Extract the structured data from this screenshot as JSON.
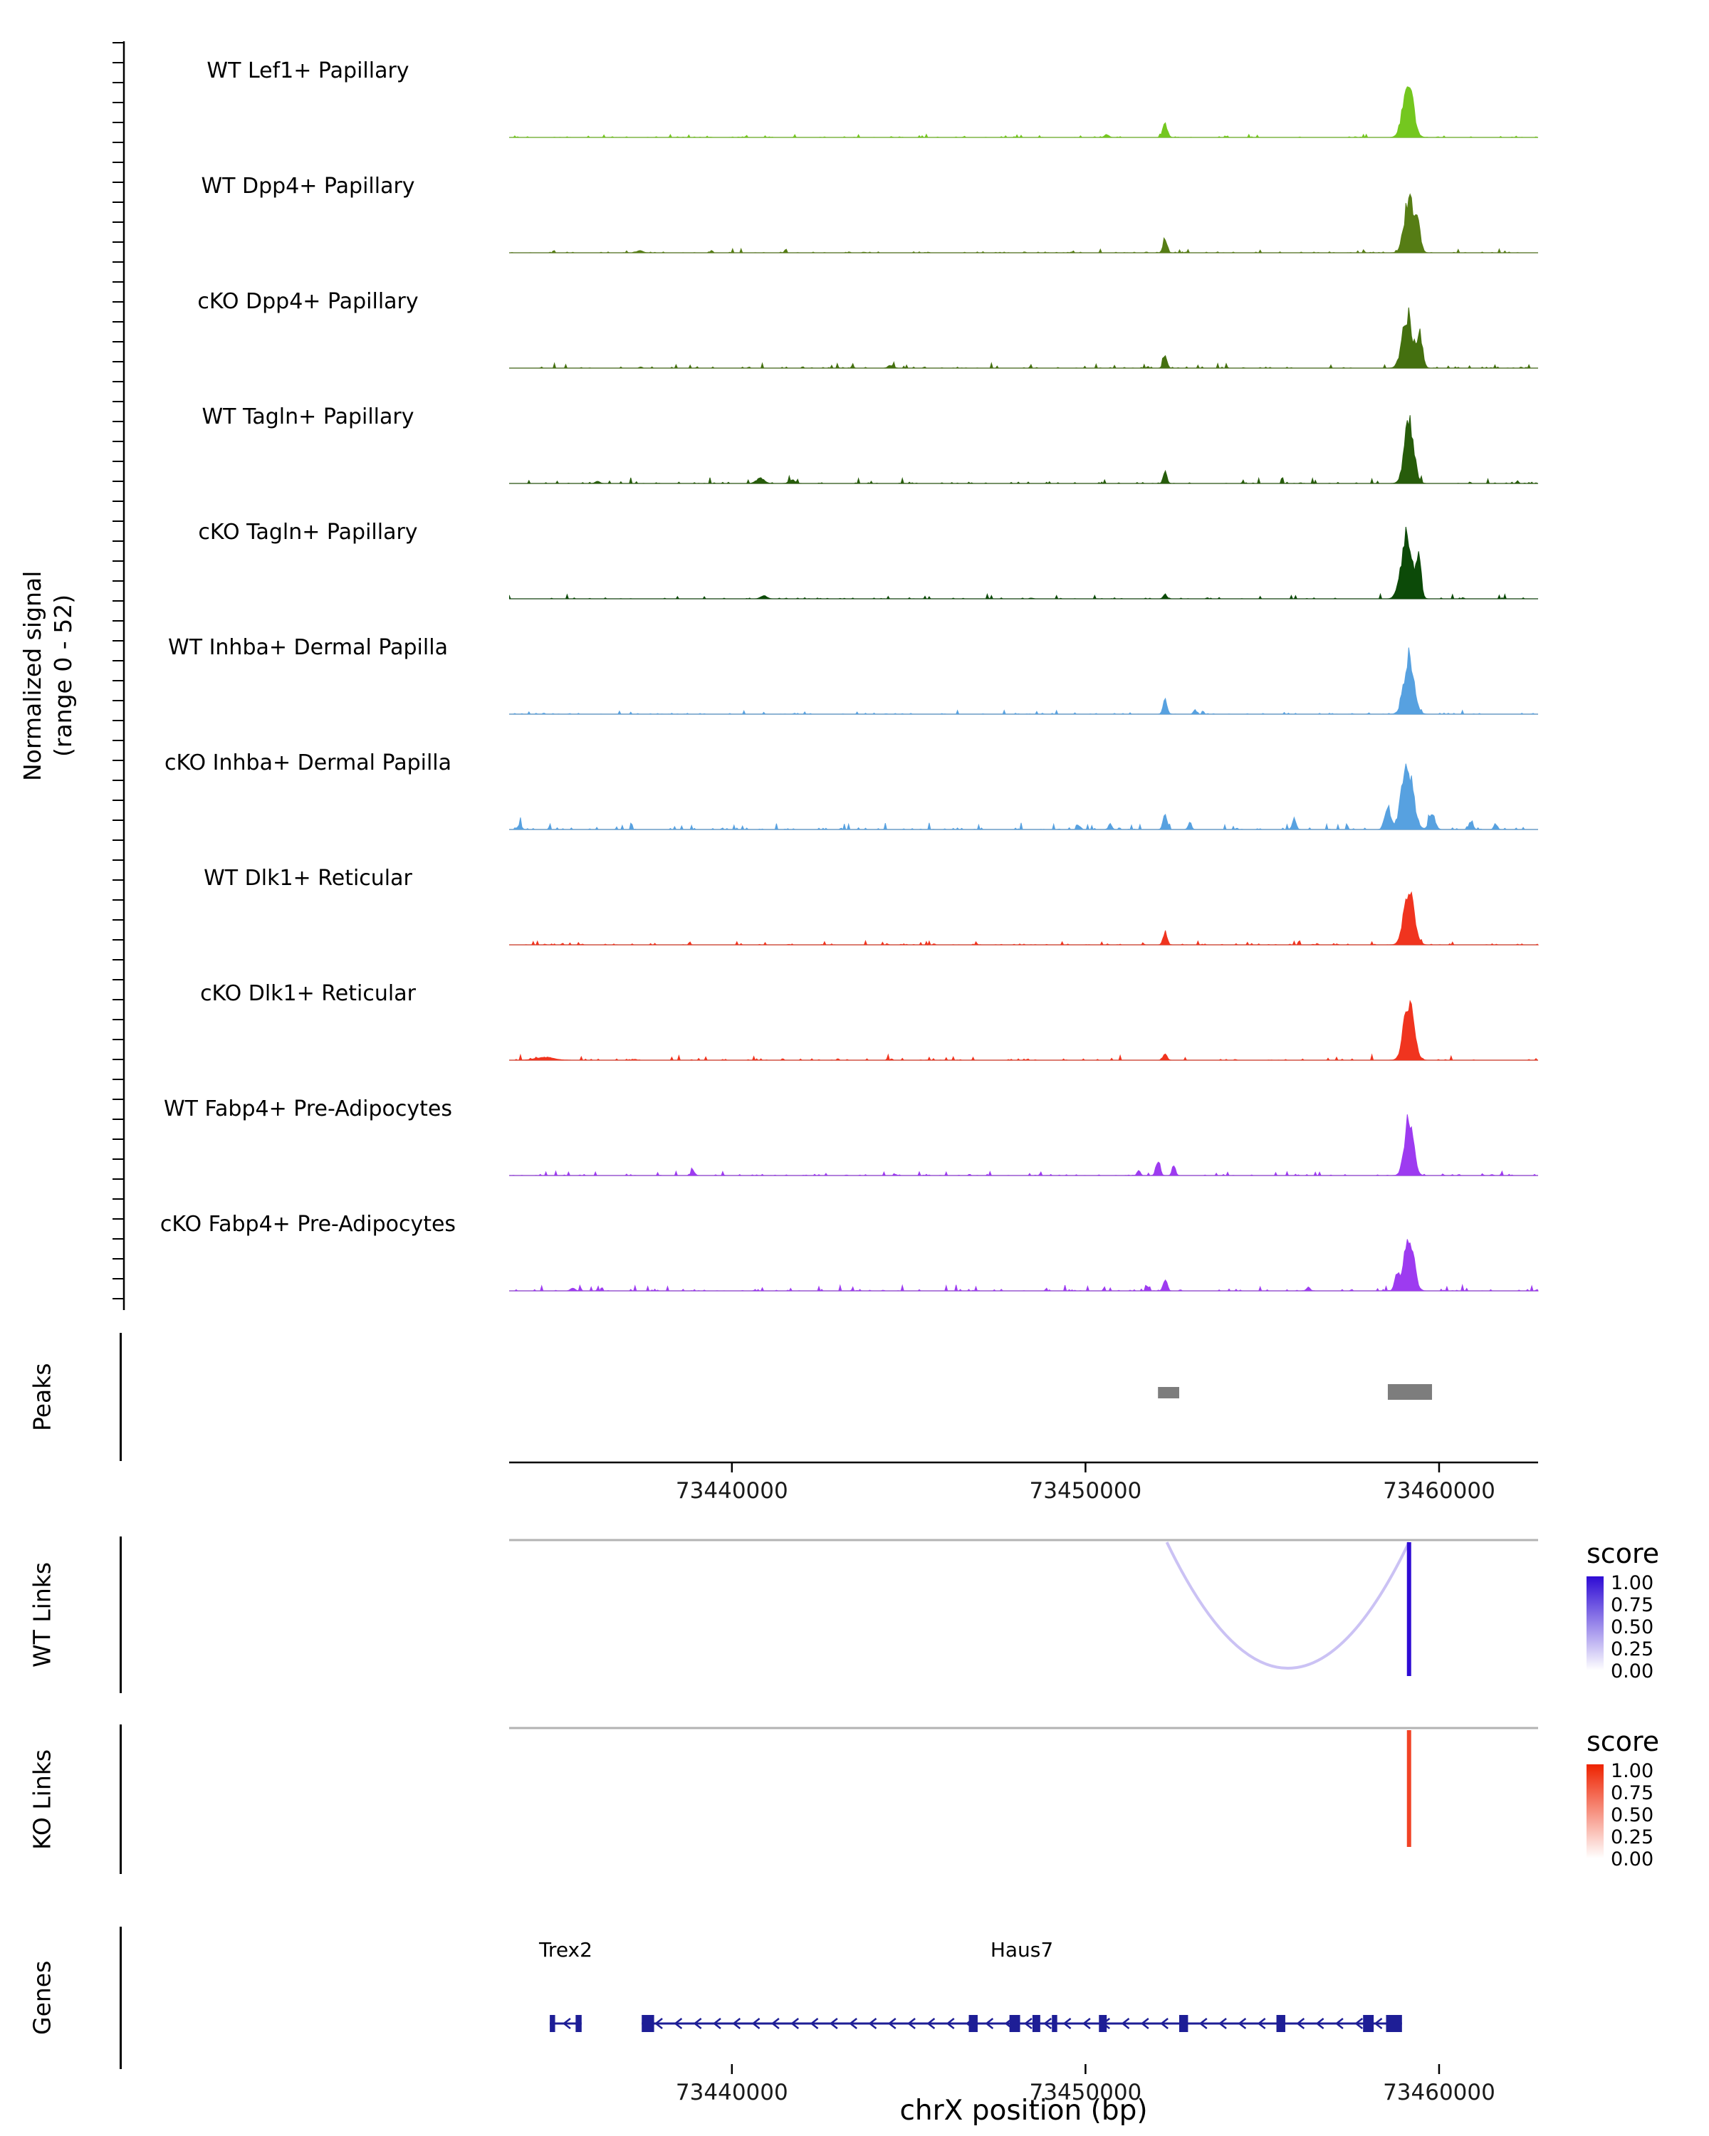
{
  "figure": {
    "y_axis_label": "Normalized signal\n(range 0 - 52)",
    "x_axis_title": "chrX position (bp)",
    "sections": {
      "peaks": "Peaks",
      "wt_links": "WT Links",
      "ko_links": "KO Links",
      "genes": "Genes"
    }
  },
  "chart_data": {
    "type": "area",
    "title": "",
    "xlabel": "chrX position (bp)",
    "ylabel": "Normalized signal (range 0 - 52)",
    "x_range": [
      73433700,
      73462800
    ],
    "y_range": [
      0,
      52
    ],
    "x_ticks": [
      {
        "value": 73440000,
        "label": "73440000"
      },
      {
        "value": 73450000,
        "label": "73450000"
      },
      {
        "value": 73460000,
        "label": "73460000"
      }
    ],
    "colors": {
      "baseline": "#909090",
      "peaks": "#7d7d7d",
      "gene": "#1e1e96",
      "axis": "#000000",
      "links_guide": "#b3b3b3"
    },
    "tracks": [
      {
        "name": "WT Lef1+ Papillary",
        "color": "#74c71f",
        "noise": 1.2,
        "peaks": [
          [
            73459120,
            40,
            140
          ],
          [
            73452250,
            9,
            65
          ],
          [
            73450600,
            2,
            60
          ]
        ]
      },
      {
        "name": "WT Dpp4+ Papillary",
        "color": "#567d15",
        "noise": 1.4,
        "peaks": [
          [
            73459150,
            38,
            130
          ],
          [
            73459400,
            16,
            80
          ],
          [
            73452250,
            10,
            55
          ],
          [
            73437400,
            1.5,
            80
          ]
        ]
      },
      {
        "name": "cKO Dpp4+ Papillary",
        "color": "#44700f",
        "noise": 1.7,
        "peaks": [
          [
            73459100,
            36,
            140
          ],
          [
            73459450,
            24,
            80
          ],
          [
            73452250,
            8,
            55
          ],
          [
            73444500,
            1.5,
            80
          ]
        ]
      },
      {
        "name": "WT Tagln+ Papillary",
        "color": "#275c0b",
        "noise": 2.0,
        "peaks": [
          [
            73459150,
            42,
            130
          ],
          [
            73452250,
            8,
            50
          ],
          [
            73440800,
            3.5,
            110
          ],
          [
            73441700,
            2.5,
            80
          ],
          [
            73436200,
            1.5,
            60
          ]
        ]
      },
      {
        "name": "cKO Tagln+ Papillary",
        "color": "#0c4a08",
        "noise": 1.6,
        "peaks": [
          [
            73459080,
            42,
            150
          ],
          [
            73459420,
            28,
            70
          ],
          [
            73452250,
            3,
            50
          ],
          [
            73440900,
            2,
            90
          ]
        ]
      },
      {
        "name": "WT Inhba+ Dermal Papilla",
        "color": "#57a1e0",
        "noise": 1.3,
        "peaks": [
          [
            73459150,
            38,
            140
          ],
          [
            73452250,
            10,
            55
          ],
          [
            73453100,
            3,
            40
          ]
        ]
      },
      {
        "name": "cKO Inhba+ Dermal Papilla",
        "color": "#57a1e0",
        "noise": 2.4,
        "peaks": [
          [
            73459100,
            42,
            160
          ],
          [
            73458550,
            15,
            80
          ],
          [
            73459800,
            12,
            80
          ],
          [
            73452250,
            11,
            55
          ],
          [
            73452950,
            5,
            45
          ],
          [
            73455900,
            6,
            55
          ],
          [
            73460900,
            6,
            55
          ],
          [
            73461600,
            4,
            45
          ],
          [
            73434000,
            4,
            50
          ],
          [
            73450700,
            4,
            45
          ],
          [
            73449800,
            3,
            40
          ]
        ]
      },
      {
        "name": "WT Dlk1+ Reticular",
        "color": "#f0341f",
        "noise": 1.4,
        "peaks": [
          [
            73459150,
            37,
            140
          ],
          [
            73452250,
            9,
            55
          ]
        ]
      },
      {
        "name": "cKO Dlk1+ Reticular",
        "color": "#f0341f",
        "noise": 1.9,
        "peaks": [
          [
            73459150,
            38,
            140
          ],
          [
            73452250,
            4,
            55
          ],
          [
            73434700,
            2,
            250
          ]
        ]
      },
      {
        "name": "WT Fabp4+ Pre-Adipocytes",
        "color": "#9d3bf0",
        "noise": 1.7,
        "peaks": [
          [
            73459150,
            40,
            120
          ],
          [
            73452050,
            11,
            55
          ],
          [
            73452500,
            8,
            45
          ],
          [
            73451500,
            4,
            40
          ],
          [
            73438900,
            3.5,
            50
          ]
        ]
      },
      {
        "name": "cKO Fabp4+ Pre-Adipocytes",
        "color": "#9d3bf0",
        "noise": 2.1,
        "peaks": [
          [
            73459150,
            38,
            130
          ],
          [
            73458800,
            12,
            60
          ],
          [
            73452250,
            7,
            55
          ],
          [
            73451750,
            3.5,
            40
          ],
          [
            73456300,
            2.5,
            50
          ],
          [
            73435500,
            2,
            60
          ]
        ]
      }
    ],
    "peaks": [
      {
        "start": 73452050,
        "end": 73452650
      },
      {
        "start": 73458550,
        "end": 73459800
      }
    ],
    "links": {
      "wt": [
        {
          "anchor1": 73452300,
          "anchor2": 73459150,
          "score": 0.25,
          "shape": "arc"
        },
        {
          "anchor1": 73459150,
          "anchor2": 73459150,
          "score": 1.0,
          "shape": "bar"
        }
      ],
      "ko": [
        {
          "anchor1": 73459150,
          "anchor2": 73459150,
          "score": 0.85,
          "shape": "bar"
        }
      ]
    },
    "link_legend": {
      "title": "score",
      "ticks": [
        "1.00",
        "0.75",
        "0.50",
        "0.25",
        "0.00"
      ],
      "wt_max_color": "#2e0bd4",
      "ko_max_color": "#ee2200",
      "min_color": "#ffffff"
    },
    "genes": [
      {
        "name": "Trex2",
        "start": 73434850,
        "end": 73435750,
        "strand": "-",
        "exons": [
          [
            73434850,
            73435000
          ],
          [
            73435580,
            73435750
          ]
        ]
      },
      {
        "name": "Haus7",
        "start": 73437450,
        "end": 73458950,
        "strand": "-",
        "exons": [
          [
            73437450,
            73437800
          ],
          [
            73446700,
            73446950
          ],
          [
            73447850,
            73448150
          ],
          [
            73448500,
            73448720
          ],
          [
            73449050,
            73449200
          ],
          [
            73450380,
            73450600
          ],
          [
            73452650,
            73452900
          ],
          [
            73455400,
            73455650
          ],
          [
            73457850,
            73458150
          ],
          [
            73458500,
            73458950
          ]
        ]
      }
    ]
  }
}
